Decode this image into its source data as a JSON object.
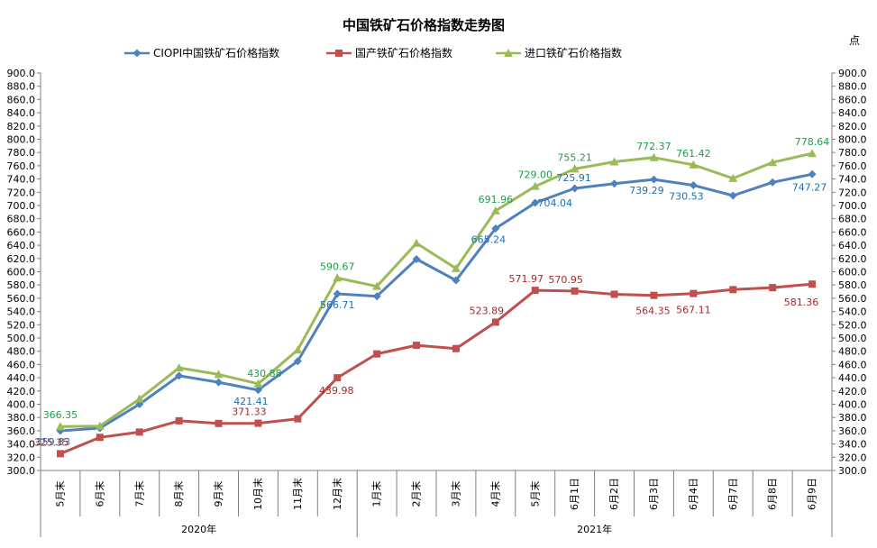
{
  "chart_data": {
    "type": "line",
    "title": "中国铁矿石价格指数走势图",
    "unit": "点",
    "ylim": [
      300,
      900
    ],
    "ystep": 20,
    "grid": false,
    "legend_position": "top",
    "categories": [
      "5月末",
      "6月末",
      "7月末",
      "8月末",
      "9月末",
      "10月末",
      "11月末",
      "12月末",
      "1月末",
      "2月末",
      "3月末",
      "4月末",
      "5月末",
      "6月1日",
      "6月2日",
      "6月3日",
      "6月4日",
      "6月7日",
      "6月8日",
      "6月9日"
    ],
    "year_groups": [
      {
        "label": "2020年",
        "start": 0,
        "end": 7
      },
      {
        "label": "2021年",
        "start": 8,
        "end": 19
      }
    ],
    "series": [
      {
        "name": "CIOPI中国铁矿石价格指数",
        "color": "#4F81BD",
        "label_color": "#1F6FAE",
        "marker": "diamond",
        "values": [
          359.83,
          364,
          400,
          443,
          433,
          421.41,
          465,
          566.71,
          563,
          619,
          587,
          665.24,
          704.04,
          725.91,
          733,
          739.29,
          730.53,
          715,
          735,
          747.27
        ],
        "data_labels": [
          {
            "index": 0,
            "text": "359.83"
          },
          {
            "index": 5,
            "text": "421.41"
          },
          {
            "index": 7,
            "text": "566.71"
          },
          {
            "index": 11,
            "text": "665.24"
          },
          {
            "index": 12,
            "text": "704.04"
          },
          {
            "index": 13,
            "text": "725.91"
          },
          {
            "index": 15,
            "text": "739.29"
          },
          {
            "index": 16,
            "text": "730.53"
          },
          {
            "index": 19,
            "text": "747.27"
          }
        ]
      },
      {
        "name": "国产铁矿石价格指数",
        "color": "#C0504D",
        "label_color": "#A52A2A",
        "marker": "square",
        "values": [
          325.35,
          350,
          358,
          375,
          371,
          371.33,
          378,
          439.98,
          476,
          489,
          484,
          523.89,
          571.97,
          570.95,
          566,
          564.35,
          567.11,
          573,
          576,
          581.36
        ],
        "data_labels": [
          {
            "index": 0,
            "text": "325.35"
          },
          {
            "index": 5,
            "text": "371.33"
          },
          {
            "index": 7,
            "text": "439.98"
          },
          {
            "index": 11,
            "text": "523.89"
          },
          {
            "index": 12,
            "text": "571.97"
          },
          {
            "index": 13,
            "text": "570.95"
          },
          {
            "index": 15,
            "text": "564.35"
          },
          {
            "index": 16,
            "text": "567.11"
          },
          {
            "index": 19,
            "text": "581.36"
          }
        ]
      },
      {
        "name": "进口铁矿石价格指数",
        "color": "#9BBB59",
        "label_color": "#1E9E4A",
        "marker": "triangle",
        "values": [
          366.35,
          367,
          408,
          455,
          445,
          430.88,
          482,
          590.67,
          578,
          643,
          605,
          691.96,
          729.0,
          755.21,
          766,
          772.37,
          761.42,
          741,
          765,
          778.64
        ],
        "data_labels": [
          {
            "index": 0,
            "text": "366.35"
          },
          {
            "index": 5,
            "text": "430.88"
          },
          {
            "index": 7,
            "text": "590.67"
          },
          {
            "index": 11,
            "text": "691.96"
          },
          {
            "index": 12,
            "text": "729.00"
          },
          {
            "index": 13,
            "text": "755.21"
          },
          {
            "index": 15,
            "text": "772.37"
          },
          {
            "index": 16,
            "text": "761.42"
          },
          {
            "index": 19,
            "text": "778.64"
          }
        ]
      }
    ]
  }
}
